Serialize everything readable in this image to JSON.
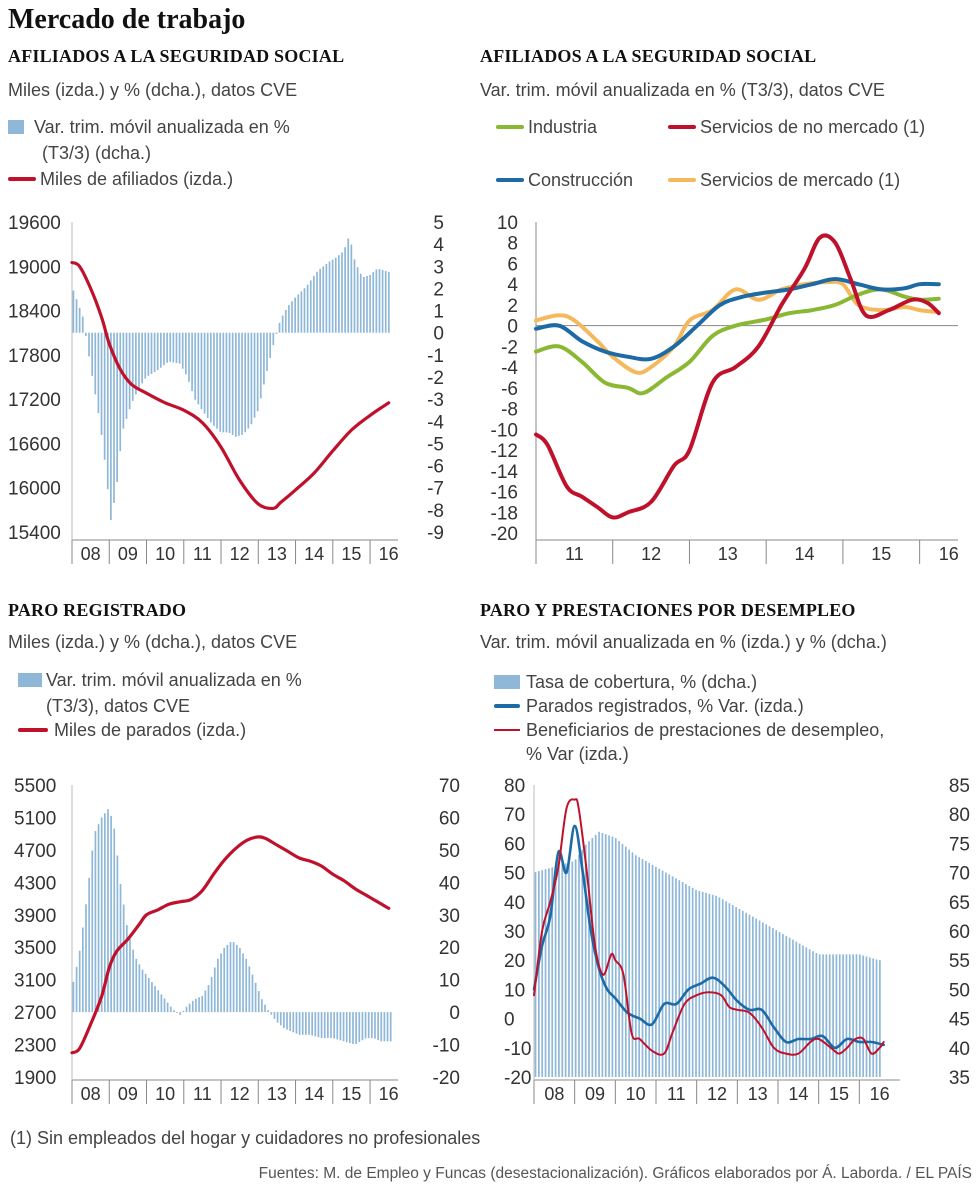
{
  "title": "Mercado de trabajo",
  "colors": {
    "bar": "#8fb8d8",
    "red": "#c0112c",
    "green": "#8ab833",
    "blue": "#1e6aa5",
    "orange": "#f4b95c"
  },
  "note": "(1) Sin empleados del hogar y cuidadores no profesionales",
  "source": "Fuentes: M. de Empleo y Funcas (desestacionalización).  Gráficos elaborados por Á. Laborda. / EL PAÍS",
  "chart_data": [
    {
      "id": "afiliados1",
      "type": "bar+line",
      "title": "AFILIADOS A LA SEGURIDAD SOCIAL",
      "subtitle": "Miles (izda.) y % (dcha.), datos CVE",
      "legend": [
        "Var. trim. móvil anualizada en %",
        "(T3/3) (dcha.)",
        "Miles de afiliados (izda.)"
      ],
      "x_ticks": [
        "08",
        "09",
        "10",
        "11",
        "12",
        "13",
        "14",
        "15",
        "16"
      ],
      "xlim": [
        2008,
        2016.75
      ],
      "y_left_ticks": [
        "19600",
        "19000",
        "18400",
        "17800",
        "17200",
        "16600",
        "16000",
        "15400"
      ],
      "y_left_range": [
        15400,
        19600
      ],
      "y_right_ticks": [
        "5",
        "4",
        "3",
        "2",
        "1",
        "0",
        "-1",
        "-2",
        "-3",
        "-4",
        "-5",
        "-6",
        "-7",
        "-8",
        "-9"
      ],
      "y_right_range": [
        -9,
        5
      ],
      "bars_t": [
        2008.0,
        2008.15,
        2008.3,
        2008.5,
        2008.75,
        2008.9,
        2009.05,
        2009.2,
        2009.35,
        2009.6,
        2009.8,
        2010.0,
        2010.3,
        2010.6,
        2010.9,
        2011.1,
        2011.3,
        2011.5,
        2011.75,
        2012.0,
        2012.2,
        2012.4,
        2012.6,
        2012.8,
        2013.0,
        2013.2,
        2013.4,
        2013.6,
        2013.8,
        2014.0,
        2014.3,
        2014.6,
        2014.9,
        2015.1,
        2015.3,
        2015.45,
        2015.6,
        2015.8,
        2016.0,
        2016.2,
        2016.4,
        2016.6
      ],
      "bars_v": [
        2.1,
        1.4,
        0.7,
        -1.5,
        -4.0,
        -6.0,
        -8.5,
        -7.0,
        -4.5,
        -3.2,
        -2.5,
        -2.0,
        -1.7,
        -1.3,
        -1.4,
        -2.0,
        -3.0,
        -3.5,
        -4.1,
        -4.5,
        -4.5,
        -4.7,
        -4.6,
        -4.2,
        -3.5,
        -2.0,
        -0.6,
        0.6,
        1.2,
        1.6,
        2.1,
        2.8,
        3.2,
        3.4,
        3.7,
        4.4,
        3.2,
        2.5,
        2.6,
        2.9,
        2.8,
        2.7
      ],
      "line_name": "Miles de afiliados (izda.)",
      "line_t": [
        2008.0,
        2008.2,
        2008.5,
        2008.8,
        2009.0,
        2009.3,
        2009.6,
        2010.0,
        2010.5,
        2011.0,
        2011.5,
        2012.0,
        2012.5,
        2013.0,
        2013.4,
        2013.6,
        2014.0,
        2014.5,
        2015.0,
        2015.5,
        2016.0,
        2016.5
      ],
      "line_v": [
        19050,
        19000,
        18700,
        18300,
        17950,
        17600,
        17400,
        17280,
        17150,
        17050,
        16880,
        16550,
        16100,
        15780,
        15720,
        15800,
        15970,
        16200,
        16500,
        16780,
        16980,
        17150
      ]
    },
    {
      "id": "afiliados2",
      "type": "line",
      "title": "AFILIADOS A LA SEGURIDAD SOCIAL",
      "subtitle": "Var. trim. móvil anualizada en % (T3/3), datos CVE",
      "x_ticks": [
        "11",
        "12",
        "13",
        "14",
        "15",
        "16"
      ],
      "xlim": [
        2011,
        2016.5
      ],
      "y_ticks": [
        "10",
        "8",
        "6",
        "4",
        "2",
        "0",
        "-2",
        "-4",
        "-6",
        "-8",
        "-10",
        "-12",
        "-14",
        "-16",
        "-18",
        "-20"
      ],
      "ylim": [
        -20,
        10
      ],
      "series": [
        {
          "name": "Industria",
          "t": [
            2011.0,
            2011.3,
            2011.6,
            2011.9,
            2012.2,
            2012.4,
            2012.7,
            2013.0,
            2013.3,
            2013.6,
            2014.0,
            2014.3,
            2014.6,
            2014.9,
            2015.2,
            2015.5,
            2015.8,
            2016.0,
            2016.25
          ],
          "v": [
            -2.5,
            -2.0,
            -3.5,
            -5.5,
            -6.0,
            -6.5,
            -5.0,
            -3.5,
            -1.0,
            0.0,
            0.6,
            1.2,
            1.5,
            2.0,
            3.0,
            3.5,
            2.8,
            2.5,
            2.6
          ]
        },
        {
          "name": "Servicios de no mercado (1)",
          "t": [
            2011.0,
            2011.15,
            2011.4,
            2011.6,
            2011.8,
            2012.0,
            2012.2,
            2012.5,
            2012.8,
            2013.0,
            2013.3,
            2013.6,
            2013.9,
            2014.2,
            2014.5,
            2014.7,
            2014.9,
            2015.1,
            2015.3,
            2015.6,
            2015.9,
            2016.1,
            2016.25
          ],
          "v": [
            -10.5,
            -11.5,
            -15.5,
            -16.5,
            -17.5,
            -18.5,
            -18.0,
            -17.0,
            -13.5,
            -12.0,
            -5.5,
            -4.0,
            -2.0,
            2.0,
            5.5,
            8.5,
            8.0,
            4.5,
            1.0,
            1.5,
            2.5,
            2.2,
            1.2
          ]
        },
        {
          "name": "Construcción",
          "t": [
            2011.0,
            2011.3,
            2011.6,
            2011.9,
            2012.2,
            2012.5,
            2012.8,
            2013.1,
            2013.4,
            2013.7,
            2014.0,
            2014.3,
            2014.6,
            2014.9,
            2015.2,
            2015.5,
            2015.8,
            2016.0,
            2016.25
          ],
          "v": [
            -0.3,
            0.0,
            -1.5,
            -2.5,
            -3.0,
            -3.2,
            -2.0,
            0.0,
            2.0,
            2.8,
            3.2,
            3.5,
            4.0,
            4.5,
            4.0,
            3.5,
            3.6,
            4.0,
            4.0
          ]
        },
        {
          "name": "Servicios de mercado (1)",
          "t": [
            2011.0,
            2011.3,
            2011.5,
            2011.8,
            2012.0,
            2012.3,
            2012.5,
            2012.8,
            2013.0,
            2013.3,
            2013.6,
            2013.9,
            2014.2,
            2014.5,
            2014.8,
            2015.0,
            2015.2,
            2015.5,
            2015.8,
            2016.0,
            2016.25
          ],
          "v": [
            0.5,
            1.0,
            0.5,
            -1.5,
            -3.0,
            -4.5,
            -4.0,
            -2.0,
            0.5,
            1.5,
            3.5,
            2.5,
            3.5,
            4.0,
            4.2,
            4.0,
            2.0,
            1.5,
            1.8,
            1.5,
            1.3
          ]
        }
      ]
    },
    {
      "id": "paro",
      "type": "bar+line",
      "title": "PARO REGISTRADO",
      "subtitle": "Miles (izda.) y % (dcha.), datos CVE",
      "legend": [
        "Var. trim. móvil anualizada en %",
        "(T3/3), datos CVE",
        "Miles de parados (izda.)"
      ],
      "x_ticks": [
        "08",
        "09",
        "10",
        "11",
        "12",
        "13",
        "14",
        "15",
        "16"
      ],
      "xlim": [
        2008,
        2016.75
      ],
      "y_left_ticks": [
        "5500",
        "5100",
        "4700",
        "4300",
        "3900",
        "3500",
        "3100",
        "2700",
        "2300",
        "1900"
      ],
      "y_left_range": [
        1900,
        5500
      ],
      "y_right_ticks": [
        "70",
        "60",
        "50",
        "40",
        "30",
        "20",
        "10",
        "0",
        "-10",
        "-20"
      ],
      "y_right_range": [
        -20,
        70
      ],
      "bars_t": [
        2008.0,
        2008.2,
        2008.4,
        2008.6,
        2008.8,
        2009.0,
        2009.15,
        2009.3,
        2009.5,
        2009.7,
        2009.9,
        2010.1,
        2010.3,
        2010.5,
        2010.7,
        2010.9,
        2011.1,
        2011.3,
        2011.5,
        2011.7,
        2011.9,
        2012.1,
        2012.3,
        2012.5,
        2012.7,
        2012.9,
        2013.1,
        2013.3,
        2013.5,
        2013.7,
        2013.9,
        2014.1,
        2014.4,
        2014.7,
        2015.0,
        2015.3,
        2015.6,
        2015.9,
        2016.1,
        2016.3,
        2016.5
      ],
      "bars_v": [
        7,
        18,
        35,
        55,
        60,
        63,
        56,
        40,
        25,
        17,
        13,
        10,
        7,
        4,
        1,
        -1,
        2,
        4,
        5,
        9,
        16,
        20,
        22,
        20,
        16,
        10,
        4,
        0,
        -3,
        -5,
        -6,
        -7,
        -7,
        -8,
        -8,
        -9,
        -10,
        -8,
        -8,
        -9,
        -9
      ],
      "line_name": "Miles de parados (izda.)",
      "line_t": [
        2008.0,
        2008.2,
        2008.5,
        2008.8,
        2009.0,
        2009.2,
        2009.5,
        2009.8,
        2010.0,
        2010.3,
        2010.6,
        2010.9,
        2011.2,
        2011.5,
        2011.8,
        2012.1,
        2012.4,
        2012.7,
        2013.0,
        2013.2,
        2013.5,
        2013.8,
        2014.1,
        2014.4,
        2014.7,
        2015.0,
        2015.3,
        2015.6,
        2015.9,
        2016.2,
        2016.5
      ],
      "line_v": [
        2200,
        2250,
        2550,
        2900,
        3250,
        3450,
        3600,
        3780,
        3900,
        3960,
        4030,
        4060,
        4090,
        4200,
        4400,
        4580,
        4720,
        4820,
        4860,
        4840,
        4760,
        4680,
        4600,
        4560,
        4500,
        4400,
        4320,
        4220,
        4140,
        4060,
        3980
      ]
    },
    {
      "id": "prestaciones",
      "type": "bar+line",
      "title": "PARO Y PRESTACIONES POR DESEMPLEO",
      "subtitle": "Var. trim. móvil anualizada en % (izda.) y % (dcha.)",
      "legend": [
        "Tasa de cobertura, % (dcha.)",
        "Parados registrados, % Var. (izda.)",
        "Beneficiarios de prestaciones de desempleo,",
        "% Var (izda.)"
      ],
      "x_ticks": [
        "08",
        "09",
        "10",
        "11",
        "12",
        "13",
        "14",
        "15",
        "16"
      ],
      "xlim": [
        2008,
        2017
      ],
      "y_left_ticks": [
        "80",
        "70",
        "60",
        "50",
        "40",
        "30",
        "20",
        "10",
        "0",
        "-10",
        "-20"
      ],
      "y_left_range": [
        -20,
        80
      ],
      "y_right_ticks": [
        "85",
        "80",
        "75",
        "70",
        "65",
        "60",
        "55",
        "50",
        "45",
        "40",
        "35"
      ],
      "y_right_range": [
        35,
        85
      ],
      "bars_t": [
        2008.0,
        2008.5,
        2009.0,
        2009.3,
        2009.6,
        2010.0,
        2010.5,
        2011.0,
        2011.5,
        2012.0,
        2012.5,
        2013.0,
        2013.5,
        2014.0,
        2014.5,
        2015.0,
        2015.5,
        2016.0,
        2016.5
      ],
      "bars_v": [
        70,
        71,
        72,
        75,
        77,
        76,
        73,
        71,
        69,
        67,
        66,
        64,
        62,
        60,
        58,
        56,
        56,
        56,
        55
      ],
      "series": [
        {
          "name": "Parados registrados, % Var. (izda.)",
          "t": [
            2008.0,
            2008.2,
            2008.4,
            2008.6,
            2008.8,
            2009.0,
            2009.2,
            2009.4,
            2009.6,
            2009.8,
            2010.0,
            2010.3,
            2010.6,
            2010.9,
            2011.2,
            2011.5,
            2011.8,
            2012.1,
            2012.4,
            2012.7,
            2013.0,
            2013.3,
            2013.6,
            2013.9,
            2014.2,
            2014.5,
            2014.8,
            2015.1,
            2015.4,
            2015.7,
            2016.0,
            2016.3,
            2016.6
          ],
          "v": [
            10,
            25,
            35,
            57,
            50,
            66,
            50,
            30,
            17,
            10,
            7,
            2,
            0,
            -2,
            5,
            5,
            10,
            12,
            14,
            11,
            6,
            3,
            3,
            -3,
            -8,
            -7,
            -7,
            -6,
            -10,
            -7,
            -8,
            -8,
            -9
          ]
        },
        {
          "name": "Beneficiarios de prestaciones de desempleo, % Var (izda.)",
          "t": [
            2008.0,
            2008.2,
            2008.4,
            2008.6,
            2008.8,
            2009.0,
            2009.1,
            2009.3,
            2009.5,
            2009.7,
            2009.9,
            2010.0,
            2010.2,
            2010.4,
            2010.6,
            2010.9,
            2011.2,
            2011.4,
            2011.7,
            2012.0,
            2012.3,
            2012.6,
            2012.8,
            2013.0,
            2013.3,
            2013.6,
            2013.9,
            2014.2,
            2014.5,
            2014.8,
            2015.0,
            2015.3,
            2015.5,
            2015.7,
            2015.9,
            2016.1,
            2016.3,
            2016.5,
            2016.6
          ],
          "v": [
            8,
            30,
            40,
            52,
            72,
            75,
            72,
            50,
            25,
            15,
            22,
            20,
            15,
            -5,
            -7,
            -11,
            -12,
            -5,
            5,
            8,
            9,
            8,
            4,
            3,
            2,
            -3,
            -10,
            -12,
            -12,
            -8,
            -7,
            -10,
            -12,
            -10,
            -7,
            -7,
            -12,
            -10,
            -8
          ]
        }
      ]
    }
  ]
}
